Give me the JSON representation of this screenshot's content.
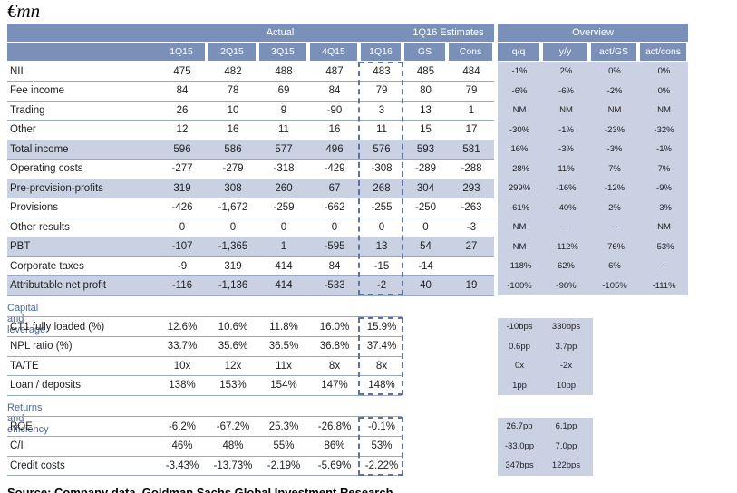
{
  "unit": "€mn",
  "header": {
    "actual": "Actual",
    "estimates": "1Q16 Estimates",
    "overview": "Overview",
    "columns": [
      "1Q15",
      "2Q15",
      "3Q15",
      "4Q15",
      "1Q16",
      "GS",
      "Cons",
      "q/q",
      "y/y",
      "act/GS",
      "act/cons"
    ]
  },
  "income_rows": [
    {
      "label": "NII",
      "shaded": false,
      "values": [
        "475",
        "482",
        "488",
        "487",
        "483",
        "485",
        "484"
      ],
      "overview": [
        "-1%",
        "2%",
        "0%",
        "0%"
      ]
    },
    {
      "label": "Fee income",
      "shaded": false,
      "values": [
        "84",
        "78",
        "69",
        "84",
        "79",
        "80",
        "79"
      ],
      "overview": [
        "-6%",
        "-6%",
        "-2%",
        "0%"
      ]
    },
    {
      "label": "Trading",
      "shaded": false,
      "values": [
        "26",
        "10",
        "9",
        "-90",
        "3",
        "13",
        "1"
      ],
      "overview": [
        "NM",
        "NM",
        "NM",
        "NM"
      ]
    },
    {
      "label": "Other",
      "shaded": false,
      "values": [
        "12",
        "16",
        "11",
        "16",
        "11",
        "15",
        "17"
      ],
      "overview": [
        "-30%",
        "-1%",
        "-23%",
        "-32%"
      ]
    },
    {
      "label": "Total income",
      "shaded": true,
      "values": [
        "596",
        "586",
        "577",
        "496",
        "576",
        "593",
        "581"
      ],
      "overview": [
        "16%",
        "-3%",
        "-3%",
        "-1%"
      ]
    },
    {
      "label": "Operating costs",
      "shaded": false,
      "values": [
        "-277",
        "-279",
        "-318",
        "-429",
        "-308",
        "-289",
        "-288"
      ],
      "overview": [
        "-28%",
        "11%",
        "7%",
        "7%"
      ]
    },
    {
      "label": "Pre-provision-profits",
      "shaded": true,
      "values": [
        "319",
        "308",
        "260",
        "67",
        "268",
        "304",
        "293"
      ],
      "overview": [
        "299%",
        "-16%",
        "-12%",
        "-9%"
      ]
    },
    {
      "label": "Provisions",
      "shaded": false,
      "values": [
        "-426",
        "-1,672",
        "-259",
        "-662",
        "-255",
        "-250",
        "-263"
      ],
      "overview": [
        "-61%",
        "-40%",
        "2%",
        "-3%"
      ]
    },
    {
      "label": "Other results",
      "shaded": false,
      "values": [
        "0",
        "0",
        "0",
        "0",
        "0",
        "0",
        "-3"
      ],
      "overview": [
        "NM",
        "--",
        "--",
        "NM"
      ]
    },
    {
      "label": "PBT",
      "shaded": true,
      "values": [
        "-107",
        "-1,365",
        "1",
        "-595",
        "13",
        "54",
        "27"
      ],
      "overview": [
        "NM",
        "-112%",
        "-76%",
        "-53%"
      ]
    },
    {
      "label": "Corporate taxes",
      "shaded": false,
      "values": [
        "-9",
        "319",
        "414",
        "84",
        "-15",
        "-14",
        ""
      ],
      "overview": [
        "-118%",
        "62%",
        "6%",
        "--"
      ]
    },
    {
      "label": "Attributable net profit",
      "shaded": true,
      "values": [
        "-116",
        "-1,136",
        "414",
        "-533",
        "-2",
        "40",
        "19"
      ],
      "overview": [
        "-100%",
        "-98%",
        "-105%",
        "-111%"
      ]
    }
  ],
  "capital": {
    "title": "Capital and leverage",
    "rows": [
      {
        "label": "CT1 fully loaded (%)",
        "values": [
          "12.6%",
          "10.6%",
          "11.8%",
          "16.0%",
          "15.9%"
        ],
        "overview": [
          "-10bps",
          "330bps"
        ]
      },
      {
        "label": "NPL ratio (%)",
        "values": [
          "33.7%",
          "35.6%",
          "36.5%",
          "36.8%",
          "37.4%"
        ],
        "overview": [
          "0.6pp",
          "3.7pp"
        ]
      },
      {
        "label": "TA/TE",
        "values": [
          "10x",
          "12x",
          "11x",
          "8x",
          "8x"
        ],
        "overview": [
          "0x",
          "-2x"
        ]
      },
      {
        "label": "Loan / deposits",
        "values": [
          "138%",
          "153%",
          "154%",
          "147%",
          "148%"
        ],
        "overview": [
          "1pp",
          "10pp"
        ]
      }
    ]
  },
  "returns": {
    "title": "Returns and efficiency",
    "rows": [
      {
        "label": "ROE",
        "values": [
          "-6.2%",
          "-67.2%",
          "25.3%",
          "-26.8%",
          "-0.1%"
        ],
        "overview": [
          "26.7pp",
          "6.1pp"
        ]
      },
      {
        "label": "C/I",
        "values": [
          "46%",
          "48%",
          "55%",
          "86%",
          "53%"
        ],
        "overview": [
          "-33.0pp",
          "7.0pp"
        ]
      },
      {
        "label": "Credit costs",
        "values": [
          "-3.43%",
          "-13.73%",
          "-2.19%",
          "-5.69%",
          "-2.22%"
        ],
        "overview": [
          "347bps",
          "122bps"
        ]
      }
    ]
  },
  "footer": "Source: Company data, Goldman Sachs Global Investment Research"
}
